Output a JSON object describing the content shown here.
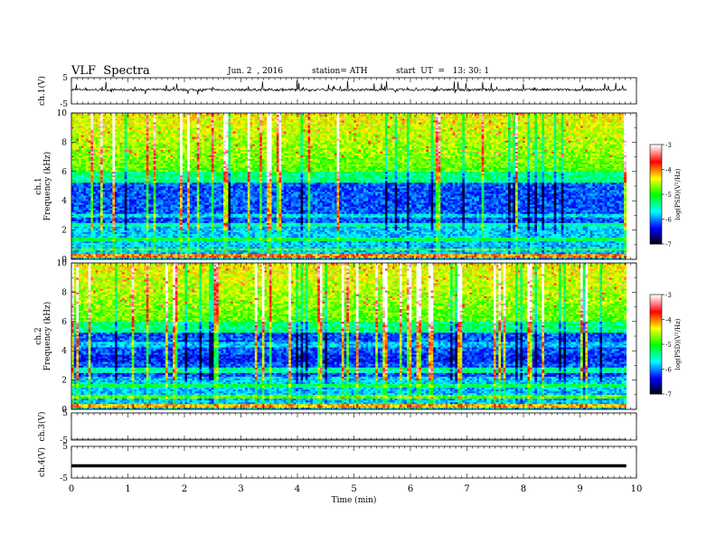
{
  "header": {
    "title": "VLF  Spectra",
    "date": "Jun. 2  , 2016",
    "station": "station= ATH",
    "start_ut": "start  UT  =   13: 30: 1"
  },
  "chart_data": [
    {
      "type": "line",
      "ylabel": "ch.1(V)",
      "ylim": [
        -5,
        5
      ],
      "y_ticks": [
        "5",
        "-5"
      ],
      "description_level": 0.0
    },
    {
      "type": "heatmap",
      "ylabel": "ch.1\nFrequency  (kHz)",
      "ylim": [
        0,
        10
      ],
      "y_ticks": [
        "0",
        "2",
        "4",
        "6",
        "8",
        "10"
      ],
      "colorbar": {
        "label": "log(PSD)(V²/Hz)",
        "range": [
          -7,
          -3
        ],
        "ticks": [
          "-3",
          "-4",
          "-5",
          "-6",
          "-7"
        ]
      }
    },
    {
      "type": "heatmap",
      "ylabel": "ch.2\nFrequency  (kHz)",
      "ylim": [
        0,
        10
      ],
      "y_ticks": [
        "0",
        "2",
        "4",
        "6",
        "8",
        "10"
      ],
      "colorbar": {
        "label": "log(PSD)(V²/Hz)",
        "range": [
          -7,
          -3
        ],
        "ticks": [
          "-3",
          "-4",
          "-5",
          "-6",
          "-7"
        ]
      }
    },
    {
      "type": "line",
      "ylabel": "ch.3(V)",
      "ylim": [
        -5,
        5
      ],
      "y_ticks": [
        "5",
        "-5"
      ]
    },
    {
      "type": "line",
      "ylabel": "ch.4(V)",
      "ylim": [
        -5,
        5
      ],
      "y_ticks": [
        "5",
        "-5"
      ]
    }
  ],
  "x_axis": {
    "label": "Time  (min)",
    "xlim": [
      0,
      10
    ],
    "ticks": [
      "0",
      "1",
      "2",
      "3",
      "4",
      "5",
      "6",
      "7",
      "8",
      "9",
      "10"
    ]
  },
  "colors": {
    "colormap": [
      "#000000",
      "#0000ff",
      "#00ffff",
      "#00ff00",
      "#ffff00",
      "#ff0000",
      "#ffffff"
    ]
  }
}
